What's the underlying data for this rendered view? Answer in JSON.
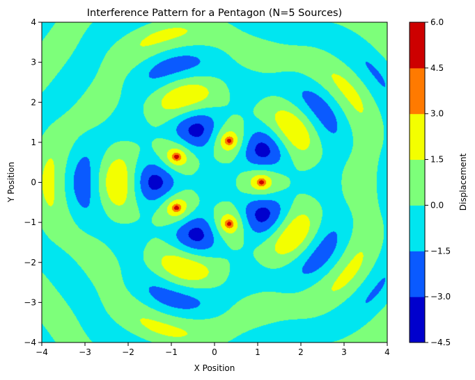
{
  "chart_data": {
    "type": "heatmap",
    "subtype": "filled-contour",
    "title": "Interference Pattern for a Pentagon (N=5 Sources)",
    "xlabel": "X Position",
    "ylabel": "Y Position",
    "xlim": [
      -4,
      4
    ],
    "ylim": [
      -4,
      4
    ],
    "x_ticks": [
      "−4",
      "−3",
      "−2",
      "−1",
      "0",
      "1",
      "2",
      "3",
      "4"
    ],
    "y_ticks": [
      "−4",
      "−3",
      "−2",
      "−1",
      "0",
      "1",
      "2",
      "3",
      "4"
    ],
    "grid": false,
    "colormap": "jet",
    "sources": {
      "count": 5,
      "arrangement": "regular pentagon",
      "points": [
        [
          1.09,
          0.0
        ],
        [
          0.34,
          1.04
        ],
        [
          -0.88,
          0.64
        ],
        [
          -0.88,
          -0.64
        ],
        [
          0.34,
          -1.04
        ]
      ]
    },
    "levels": [
      -4.5,
      -3.0,
      -1.5,
      0.0,
      1.5,
      3.0,
      4.5,
      6.0
    ],
    "level_colors": [
      "#0000cd",
      "#0a5aff",
      "#00e6f0",
      "#7dff7a",
      "#f3ff00",
      "#ff7a00",
      "#cd0000"
    ],
    "colorbar": {
      "label": "Displacement",
      "ticks": [
        "−4.5",
        "−3.0",
        "−1.5",
        "0.0",
        "1.5",
        "3.0",
        "4.5",
        "6.0"
      ],
      "position": "right"
    }
  }
}
